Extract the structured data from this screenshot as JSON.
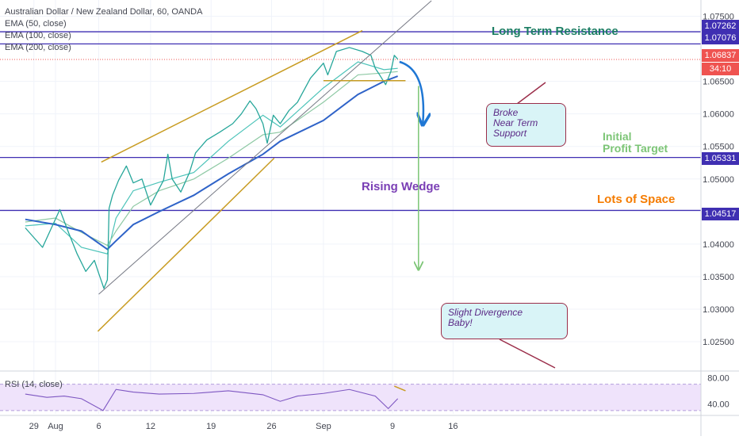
{
  "chart_data": {
    "type": "line",
    "title": "Australian Dollar / New Zealand Dollar, 60, OANDA",
    "symbol": "AUDNZD",
    "interval": "60",
    "exchange": "OANDA",
    "indicators": [
      "EMA (50, close)",
      "EMA (100, close)",
      "EMA (200, close)"
    ],
    "rsi_label": "RSI (14, close)",
    "x_axis": {
      "tick_labels": [
        "29",
        "Aug",
        "6",
        "12",
        "19",
        "26",
        "Sep",
        "9",
        "16"
      ],
      "tick_days": [
        -2.5,
        0,
        5,
        11,
        18,
        25,
        31,
        39,
        46
      ]
    },
    "y_axis": {
      "range": [
        1.0205,
        1.0775
      ],
      "tick_labels": [
        "1.07500",
        "1.06500",
        "1.06000",
        "1.05500",
        "1.05000",
        "1.04000",
        "1.03500",
        "1.03000",
        "1.02500"
      ],
      "tick_values": [
        1.075,
        1.065,
        1.06,
        1.055,
        1.05,
        1.04,
        1.035,
        1.03,
        1.025
      ],
      "grid": true
    },
    "rsi_axis": {
      "range": [
        25,
        90
      ],
      "tick_labels": [
        "80.00",
        "40.00"
      ],
      "tick_values": [
        80,
        40
      ],
      "band": [
        30,
        70
      ]
    },
    "levels": [
      {
        "label": "1.07262",
        "value": 1.07262,
        "color": "#3f2fb2"
      },
      {
        "label": "1.07076",
        "value": 1.07076,
        "color": "#3f2fb2"
      },
      {
        "label": "1.05331",
        "value": 1.05331,
        "color": "#3f2fb2"
      },
      {
        "label": "1.04517",
        "value": 1.04517,
        "color": "#3f2fb2"
      }
    ],
    "current_price": {
      "label": "1.06837",
      "value": 1.06837,
      "countdown": "34:10",
      "color": "#ef5350"
    },
    "price_series": {
      "name": "AUDNZD",
      "x": [
        -3.5,
        -1.5,
        0.5,
        1.5,
        2.5,
        3.5,
        4.5,
        5.0,
        5.6,
        6.0,
        6.2,
        6.6,
        7.3,
        8.2,
        9.0,
        10.0,
        11.0,
        12.5,
        13.0,
        13.5,
        14.5,
        15.5,
        16.2,
        17.5,
        19.0,
        20.5,
        21.5,
        22.5,
        23.2,
        24.0,
        24.5,
        25.2,
        26.0,
        27.0,
        28.0,
        29.5,
        31.0,
        31.5,
        32.5,
        34.0,
        35.5,
        36.5,
        37.0,
        37.5,
        38.2,
        38.8,
        39.2,
        39.6
      ],
      "close": [
        1.0425,
        1.0395,
        1.0453,
        1.0418,
        1.0385,
        1.0358,
        1.0375,
        1.0355,
        1.0332,
        1.0345,
        1.0455,
        1.0475,
        1.0498,
        1.052,
        1.0494,
        1.05,
        1.046,
        1.0498,
        1.0538,
        1.05,
        1.048,
        1.051,
        1.054,
        1.056,
        1.0572,
        1.0585,
        1.06,
        1.062,
        1.0608,
        1.0585,
        1.0555,
        1.0598,
        1.0585,
        1.0605,
        1.0618,
        1.0655,
        1.0678,
        1.066,
        1.0696,
        1.0702,
        1.0696,
        1.069,
        1.067,
        1.066,
        1.0645,
        1.0665,
        1.069,
        1.0684
      ]
    },
    "ema_series": [
      {
        "name": "EMA (50, close)",
        "color": "#4cc3b9",
        "x": [
          -3.5,
          0,
          3,
          6,
          7,
          9,
          12,
          16,
          20,
          24,
          26,
          31,
          35,
          38,
          39.6
        ],
        "values": [
          1.0428,
          1.0432,
          1.0395,
          1.0385,
          1.044,
          1.0482,
          1.0495,
          1.051,
          1.0558,
          1.0598,
          1.058,
          1.064,
          1.068,
          1.0668,
          1.067
        ]
      },
      {
        "name": "EMA (100, close)",
        "color": "#8ec9a4",
        "x": [
          -3.5,
          0,
          3,
          6,
          7,
          9,
          12,
          16,
          20,
          24,
          26,
          31,
          35,
          38,
          39.6
        ],
        "values": [
          1.0434,
          1.044,
          1.0418,
          1.0398,
          1.042,
          1.0458,
          1.0482,
          1.05,
          1.0532,
          1.0568,
          1.0572,
          1.0618,
          1.066,
          1.0663,
          1.0665
        ]
      },
      {
        "name": "EMA (200, close)",
        "color": "#2f63c8",
        "x": [
          -3.5,
          0,
          3,
          6,
          7,
          9,
          12,
          16,
          20,
          24,
          26,
          31,
          35,
          38,
          39.6
        ],
        "values": [
          1.0438,
          1.043,
          1.042,
          1.0392,
          1.0405,
          1.043,
          1.045,
          1.0475,
          1.0508,
          1.0538,
          1.0558,
          1.059,
          1.063,
          1.065,
          1.0658
        ]
      }
    ],
    "rsi_series": {
      "name": "RSI (14, close)",
      "x": [
        -3.5,
        -1,
        1,
        3,
        5.5,
        7,
        9,
        12,
        16,
        20,
        24,
        26,
        28,
        31,
        34,
        37,
        38.5,
        39.6
      ],
      "values": [
        55,
        50,
        52,
        48,
        30,
        62,
        58,
        55,
        56,
        60,
        54,
        44,
        52,
        56,
        62,
        52,
        33,
        48
      ]
    },
    "drawings": [
      {
        "kind": "wedge-upper",
        "color": "#c89c22",
        "from": [
          5.3,
          1.0526
        ],
        "to": [
          35.5,
          1.0728
        ]
      },
      {
        "kind": "wedge-lower",
        "color": "#c89c22",
        "from": [
          4.9,
          1.0266
        ],
        "to": [
          25.3,
          1.0532
        ]
      },
      {
        "kind": "trendline",
        "color": "#787b86",
        "from": [
          5.0,
          1.0323
        ],
        "to": [
          43.5,
          1.0774
        ]
      },
      {
        "kind": "support",
        "color": "#c89c22",
        "from": [
          31.0,
          1.0651
        ],
        "to": [
          40.5,
          1.0651
        ]
      },
      {
        "kind": "arrow-curve",
        "color": "#1f77d4",
        "from": [
          39.8,
          1.068
        ],
        "to": [
          42.5,
          1.0585
        ]
      },
      {
        "kind": "arrow-down",
        "color": "#7cc576",
        "from": [
          42.0,
          1.0643
        ],
        "to": [
          42.0,
          1.0362
        ]
      },
      {
        "kind": "rsi-divergence",
        "color": "#c89c22",
        "from": [
          39.2,
          67
        ],
        "to": [
          40.5,
          60
        ]
      }
    ],
    "annotations": {
      "resistance": "Long Term Resistance",
      "broke": [
        "Broke",
        "Near Term",
        "Support"
      ],
      "profit": [
        "Initial",
        "Profit Target"
      ],
      "wedge": "Rising Wedge",
      "space": "Lots of Space",
      "divergence": [
        "Slight Divergence",
        "Baby!"
      ]
    },
    "colors": {
      "level_line": "#3f2fb2",
      "resistance_text": "#1b7d63",
      "profit_text": "#7cc576",
      "space_text": "#f57c00",
      "wedge_text": "#7a3fb5",
      "callout_bg": "#d9f4f7"
    }
  }
}
